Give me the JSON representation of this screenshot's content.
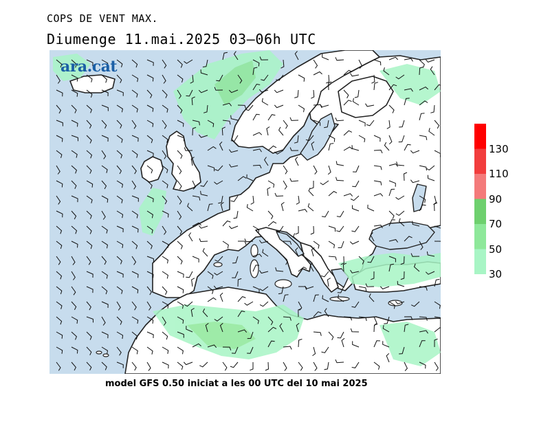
{
  "header": {
    "title": "COPS DE VENT MAX.",
    "subtitle": "Diumenge  11.mai.2025 03–06h UTC"
  },
  "logo": {
    "text": "ara.cat"
  },
  "footer": {
    "text": "model GFS 0.50 iniciat a les 00 UTC del 10 mai 2025"
  },
  "legend": {
    "bands": [
      {
        "from": 30,
        "to": 50,
        "color": "#a8f5c5"
      },
      {
        "from": 50,
        "to": 70,
        "color": "#8ee89a"
      },
      {
        "from": 70,
        "to": 90,
        "color": "#6ed06e"
      },
      {
        "from": 90,
        "to": 110,
        "color": "#f47a7a"
      },
      {
        "from": 110,
        "to": 130,
        "color": "#f23d3d"
      },
      {
        "from": 130,
        "to": 150,
        "color": "#ff0000"
      }
    ],
    "labels": [
      "30",
      "50",
      "70",
      "90",
      "110",
      "130"
    ]
  },
  "map": {
    "colors": {
      "sea": "#c7dced",
      "land": "#ffffff",
      "coast": "#222222",
      "barb": "#111111"
    }
  }
}
